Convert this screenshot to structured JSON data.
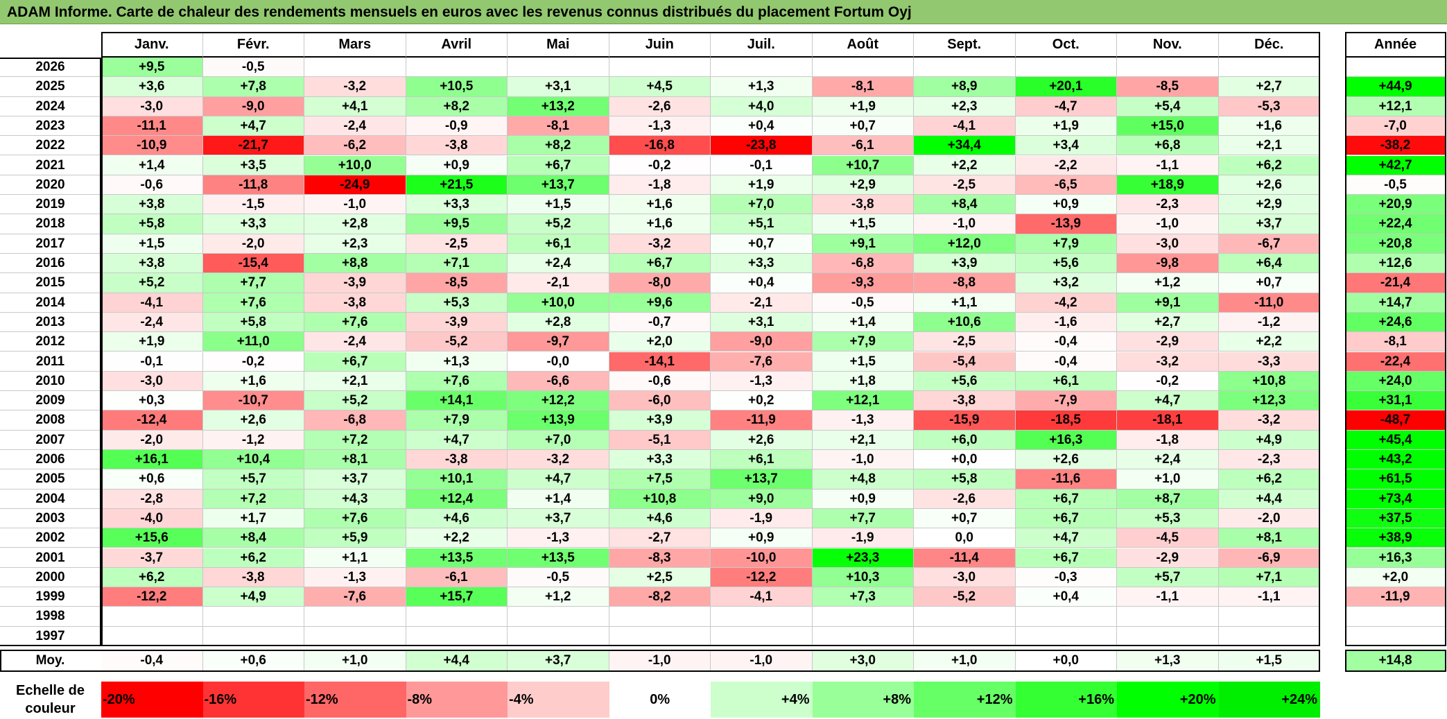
{
  "title": "ADAM Informe. Carte de chaleur des rendements mensuels en euros avec les revenus connus distribués du placement Fortum Oyj",
  "chart_data": {
    "type": "heatmap",
    "months": [
      "Janv.",
      "Févr.",
      "Mars",
      "Avril",
      "Mai",
      "Juin",
      "Juil.",
      "Août",
      "Sept.",
      "Oct.",
      "Nov.",
      "Déc."
    ],
    "annual_header": "Année",
    "unit": "%",
    "rows": [
      {
        "year": "2026",
        "months": [
          9.5,
          -0.5,
          null,
          null,
          null,
          null,
          null,
          null,
          null,
          null,
          null,
          null
        ],
        "annual": null
      },
      {
        "year": "2025",
        "months": [
          3.6,
          7.8,
          -3.2,
          10.5,
          3.1,
          4.5,
          1.3,
          -8.1,
          8.9,
          20.1,
          -8.5,
          2.7
        ],
        "annual": 44.9
      },
      {
        "year": "2024",
        "months": [
          -3.0,
          -9.0,
          4.1,
          8.2,
          13.2,
          -2.6,
          4.0,
          1.9,
          2.3,
          -4.7,
          5.4,
          -5.3
        ],
        "annual": 12.1
      },
      {
        "year": "2023",
        "months": [
          -11.1,
          4.7,
          -2.4,
          -0.9,
          -8.1,
          -1.3,
          0.4,
          0.7,
          -4.1,
          1.9,
          15.0,
          1.6
        ],
        "annual": -7.0
      },
      {
        "year": "2022",
        "months": [
          -10.9,
          -21.7,
          -6.2,
          -3.8,
          8.2,
          -16.8,
          -23.8,
          -6.1,
          34.4,
          3.4,
          6.8,
          2.1
        ],
        "annual": -38.2
      },
      {
        "year": "2021",
        "months": [
          1.4,
          3.5,
          10.0,
          0.9,
          6.7,
          -0.2,
          -0.1,
          10.7,
          2.2,
          -2.2,
          -1.1,
          6.2
        ],
        "annual": 42.7
      },
      {
        "year": "2020",
        "months": [
          -0.6,
          -11.8,
          -24.9,
          21.5,
          13.7,
          -1.8,
          1.9,
          2.9,
          -2.5,
          -6.5,
          18.9,
          2.6
        ],
        "annual": -0.5
      },
      {
        "year": "2019",
        "months": [
          3.8,
          -1.5,
          -1.0,
          3.3,
          1.5,
          1.6,
          7.0,
          -3.8,
          8.4,
          0.9,
          -2.3,
          2.9
        ],
        "annual": 20.9
      },
      {
        "year": "2018",
        "months": [
          5.8,
          3.3,
          2.8,
          9.5,
          5.2,
          1.6,
          5.1,
          1.5,
          -1.0,
          -13.9,
          -1.0,
          3.7
        ],
        "annual": 22.4
      },
      {
        "year": "2017",
        "months": [
          1.5,
          -2.0,
          2.3,
          -2.5,
          6.1,
          -3.2,
          0.7,
          9.1,
          12.0,
          7.9,
          -3.0,
          -6.7
        ],
        "annual": 20.8
      },
      {
        "year": "2016",
        "months": [
          3.8,
          -15.4,
          8.8,
          7.1,
          2.4,
          6.7,
          3.3,
          -6.8,
          3.9,
          5.6,
          -9.8,
          6.4
        ],
        "annual": 12.6
      },
      {
        "year": "2015",
        "months": [
          5.2,
          7.7,
          -3.9,
          -8.5,
          -2.1,
          -8.0,
          0.4,
          -9.3,
          -8.8,
          3.2,
          1.2,
          0.7
        ],
        "annual": -21.4
      },
      {
        "year": "2014",
        "months": [
          -4.1,
          7.6,
          -3.8,
          5.3,
          10.0,
          9.6,
          -2.1,
          -0.5,
          1.1,
          -4.2,
          9.1,
          -11.0
        ],
        "annual": 14.7
      },
      {
        "year": "2013",
        "months": [
          -2.4,
          5.8,
          7.6,
          -3.9,
          2.8,
          -0.7,
          3.1,
          1.4,
          10.6,
          -1.6,
          2.7,
          -1.2
        ],
        "annual": 24.6
      },
      {
        "year": "2012",
        "months": [
          1.9,
          11.0,
          -2.4,
          -5.2,
          -9.7,
          2.0,
          -9.0,
          7.9,
          -2.5,
          -0.4,
          -2.9,
          2.2
        ],
        "annual": -8.1
      },
      {
        "year": "2011",
        "months": [
          -0.1,
          -0.2,
          6.7,
          1.3,
          "-0,0",
          -14.1,
          -7.6,
          1.5,
          -5.4,
          -0.4,
          -3.2,
          -3.3
        ],
        "annual": -22.4
      },
      {
        "year": "2010",
        "months": [
          -3.0,
          1.6,
          2.1,
          7.6,
          -6.6,
          -0.6,
          -1.3,
          1.8,
          5.6,
          6.1,
          -0.2,
          10.8
        ],
        "annual": 24.0
      },
      {
        "year": "2009",
        "months": [
          0.3,
          -10.7,
          5.2,
          14.1,
          12.2,
          -6.0,
          0.2,
          12.1,
          -3.8,
          -7.9,
          4.7,
          12.3
        ],
        "annual": 31.1
      },
      {
        "year": "2008",
        "months": [
          -12.4,
          2.6,
          -6.8,
          7.9,
          13.9,
          3.9,
          -11.9,
          -1.3,
          -15.9,
          -18.5,
          -18.1,
          -3.2
        ],
        "annual": -48.7
      },
      {
        "year": "2007",
        "months": [
          -2.0,
          -1.2,
          7.2,
          4.7,
          7.0,
          -5.1,
          2.6,
          2.1,
          6.0,
          16.3,
          -1.8,
          4.9
        ],
        "annual": 45.4
      },
      {
        "year": "2006",
        "months": [
          16.1,
          10.4,
          8.1,
          -3.8,
          -3.2,
          3.3,
          6.1,
          -1.0,
          "+0,0",
          2.6,
          2.4,
          -2.3
        ],
        "annual": 43.2
      },
      {
        "year": "2005",
        "months": [
          0.6,
          5.7,
          3.7,
          10.1,
          4.7,
          7.5,
          13.7,
          4.8,
          5.8,
          -11.6,
          1.0,
          6.2
        ],
        "annual": 61.5
      },
      {
        "year": "2004",
        "months": [
          -2.8,
          7.2,
          4.3,
          12.4,
          1.4,
          10.8,
          9.0,
          0.9,
          -2.6,
          6.7,
          8.7,
          4.4
        ],
        "annual": 73.4
      },
      {
        "year": "2003",
        "months": [
          -4.0,
          1.7,
          7.6,
          4.6,
          3.7,
          4.6,
          -1.9,
          7.7,
          0.7,
          6.7,
          5.3,
          -2.0
        ],
        "annual": 37.5
      },
      {
        "year": "2002",
        "months": [
          15.6,
          8.4,
          5.9,
          2.2,
          -1.3,
          -2.7,
          0.9,
          -1.9,
          "0,0",
          4.7,
          -4.5,
          8.1
        ],
        "annual": 38.9
      },
      {
        "year": "2001",
        "months": [
          -3.7,
          6.2,
          1.1,
          13.5,
          13.5,
          -8.3,
          -10.0,
          23.3,
          -11.4,
          6.7,
          -2.9,
          -6.9
        ],
        "annual": 16.3
      },
      {
        "year": "2000",
        "months": [
          6.2,
          -3.8,
          -1.3,
          -6.1,
          -0.5,
          2.5,
          -12.2,
          10.3,
          -3.0,
          -0.3,
          5.7,
          7.1
        ],
        "annual": 2.0
      },
      {
        "year": "1999",
        "months": [
          -12.2,
          4.9,
          -7.6,
          15.7,
          1.2,
          -8.2,
          -4.1,
          7.3,
          -5.2,
          0.4,
          -1.1,
          -1.1
        ],
        "annual": -11.9
      },
      {
        "year": "1998",
        "months": [
          null,
          null,
          null,
          null,
          null,
          null,
          null,
          null,
          null,
          null,
          null,
          null
        ],
        "annual": null
      },
      {
        "year": "1997",
        "months": [
          null,
          null,
          null,
          null,
          null,
          null,
          null,
          null,
          null,
          null,
          null,
          null
        ],
        "annual": null
      }
    ],
    "average": {
      "label": "Moy.",
      "months": [
        -0.4,
        0.6,
        1.0,
        4.4,
        3.7,
        -1.0,
        -1.0,
        3.0,
        1.0,
        0.0,
        1.3,
        1.5
      ],
      "annual": 14.8
    },
    "scale": {
      "label": "Echelle de couleur",
      "steps": [
        {
          "label": "-20%",
          "value": -20,
          "color": "#ff0000"
        },
        {
          "label": "-16%",
          "value": -16,
          "color": "#ff3333"
        },
        {
          "label": "-12%",
          "value": -12,
          "color": "#ff6666"
        },
        {
          "label": "-8%",
          "value": -8,
          "color": "#ff9999"
        },
        {
          "label": "-4%",
          "value": -4,
          "color": "#ffcccc"
        },
        {
          "label": "0%",
          "value": 0,
          "color": "#ffffff"
        },
        {
          "label": "+4%",
          "value": 4,
          "color": "#ccffcc"
        },
        {
          "label": "+8%",
          "value": 8,
          "color": "#99ff99"
        },
        {
          "label": "+12%",
          "value": 12,
          "color": "#66ff66"
        },
        {
          "label": "+16%",
          "value": 16,
          "color": "#33ff33"
        },
        {
          "label": "+20%",
          "value": 20,
          "color": "#00ff00"
        },
        {
          "label": "+24%",
          "value": 24,
          "color": "#00ee00"
        }
      ]
    }
  }
}
